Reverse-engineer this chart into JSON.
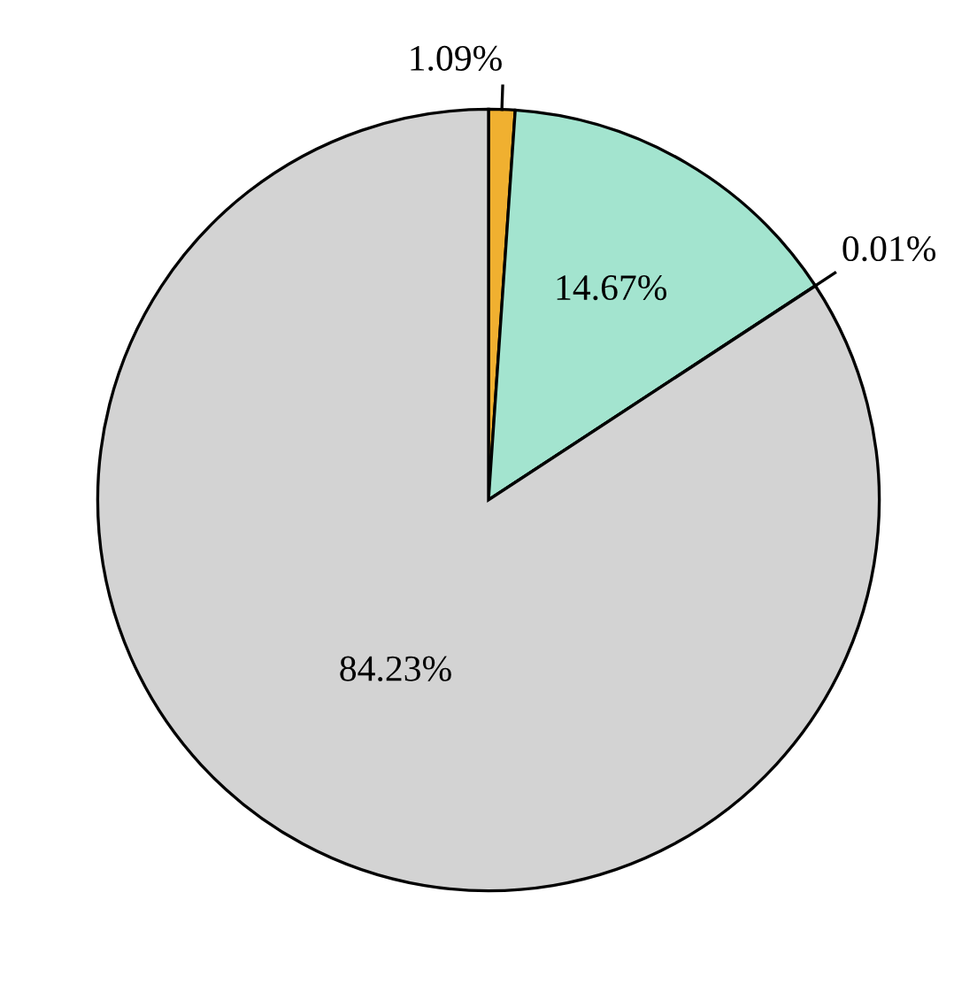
{
  "chart_data": {
    "type": "pie",
    "categories": [
      null,
      null,
      null,
      null
    ],
    "values": [
      1.09,
      14.67,
      0.01,
      84.23
    ],
    "colors": [
      "#f0b030",
      "#a3e4cf",
      "#a0208a",
      "#d3d3d3"
    ],
    "value_labels": [
      "1.09%",
      "14.67%",
      "0.01%",
      "84.23%"
    ]
  }
}
